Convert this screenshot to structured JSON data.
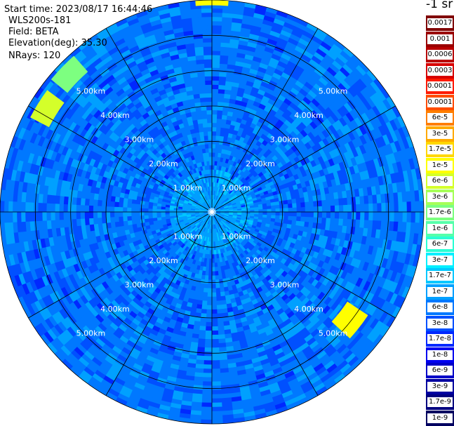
{
  "info": {
    "start_time": "Start time: 2023/08/17 16:44:46",
    "instrument": "WLS200s-181",
    "field": "Field: BETA",
    "elevation": "Elevation(deg): 35.30",
    "nrays": "NRays: 120"
  },
  "colorbar": {
    "unit_title": "-1 sr",
    "entries": [
      {
        "label": "0.0017",
        "color": "#800000"
      },
      {
        "label": "0.001",
        "color": "#9a0000"
      },
      {
        "label": "0.0006",
        "color": "#b80000"
      },
      {
        "label": "0.0003",
        "color": "#d80000"
      },
      {
        "label": "0.00017",
        "color": "#ff1a00"
      },
      {
        "label": "0.0001",
        "color": "#ff4c00"
      },
      {
        "label": "6e-5",
        "color": "#ff7e00"
      },
      {
        "label": "3e-5",
        "color": "#ffaa00"
      },
      {
        "label": "1.7e-5",
        "color": "#ffd700"
      },
      {
        "label": "1e-5",
        "color": "#ffff00"
      },
      {
        "label": "6e-6",
        "color": "#d4ff2a"
      },
      {
        "label": "3e-6",
        "color": "#a6ff58"
      },
      {
        "label": "1.7e-6",
        "color": "#7dff80"
      },
      {
        "label": "1e-6",
        "color": "#55ffaa"
      },
      {
        "label": "6e-7",
        "color": "#2affd4"
      },
      {
        "label": "3e-7",
        "color": "#00f0ff"
      },
      {
        "label": "1.7e-7",
        "color": "#00c8ff"
      },
      {
        "label": "1e-7",
        "color": "#00a0ff"
      },
      {
        "label": "6e-8",
        "color": "#0078ff"
      },
      {
        "label": "3e-8",
        "color": "#0050ff"
      },
      {
        "label": "1.7e-8",
        "color": "#0028ff"
      },
      {
        "label": "1e-8",
        "color": "#0000f0"
      },
      {
        "label": "6e-9",
        "color": "#0000c8"
      },
      {
        "label": "3e-9",
        "color": "#0000a0"
      },
      {
        "label": "1.7e-9",
        "color": "#000080"
      },
      {
        "label": "1e-9",
        "color": "#000060"
      }
    ]
  },
  "chart_data": {
    "type": "heatmap",
    "projection": "polar-ppi",
    "field": "BETA",
    "elevation_deg": 35.3,
    "n_rays": 120,
    "range_rings_km": [
      1.0,
      2.0,
      3.0,
      4.0,
      5.0,
      6.0
    ],
    "ring_labels": [
      "1.00km",
      "2.00km",
      "3.00km",
      "4.00km",
      "5.00km"
    ],
    "spokes_deg": [
      0,
      30,
      60,
      90,
      120,
      150,
      180,
      210,
      240,
      270,
      300,
      330
    ],
    "max_range_km": 6.0,
    "grid": true,
    "dominant_value_by_range": [
      {
        "range_km": [
          0.0,
          1.2
        ],
        "value": "3e-7"
      },
      {
        "range_km": [
          1.2,
          6.0
        ],
        "value": "6e-8"
      }
    ],
    "hotspots": [
      {
        "azimuth_deg": 0,
        "range_km": [
          5.85,
          6.0
        ],
        "value": "1e-5"
      },
      {
        "azimuth_deg": 302,
        "range_km": [
          5.2,
          5.8
        ],
        "value": "6e-6"
      },
      {
        "azimuth_deg": 314,
        "range_km": [
          5.3,
          5.9
        ],
        "value": "1.7e-6"
      },
      {
        "azimuth_deg": 128,
        "range_km": [
          4.6,
          5.3
        ],
        "value": "1e-5"
      }
    ]
  }
}
